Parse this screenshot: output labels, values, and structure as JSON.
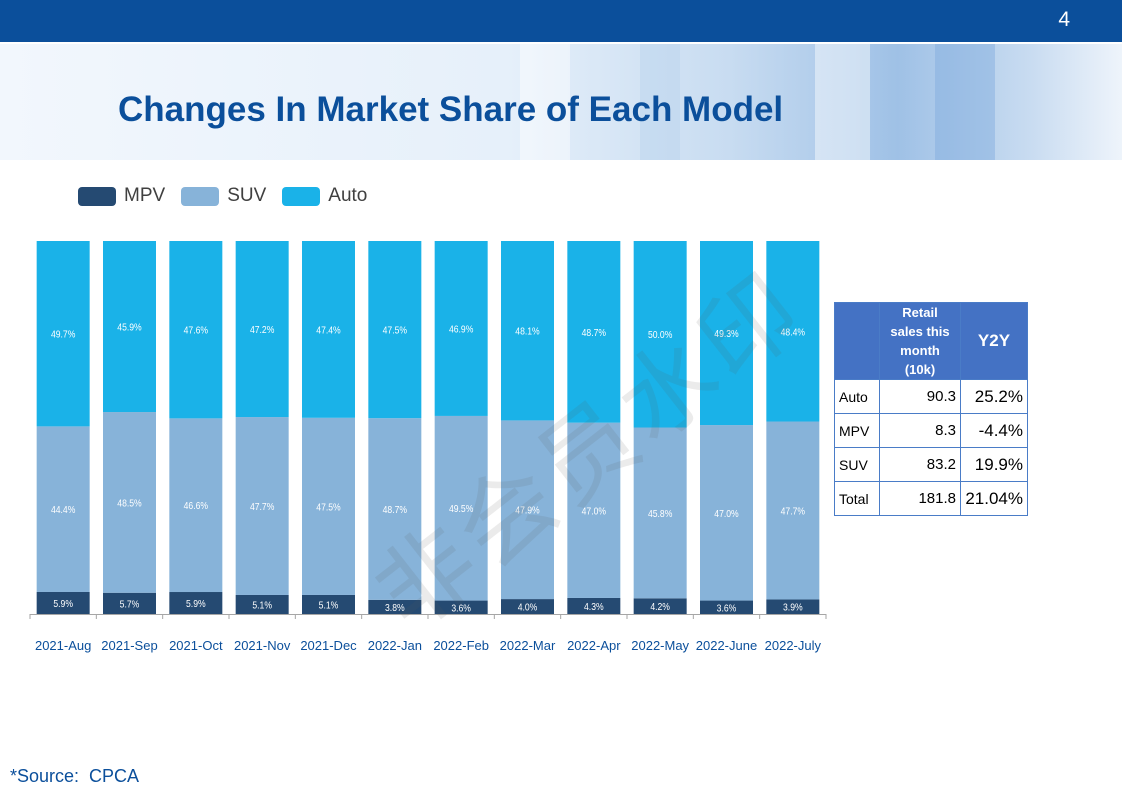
{
  "page": {
    "number": "4",
    "title": "Changes In Market Share of Each Model",
    "source": "*Source:  CPCA"
  },
  "legend": [
    {
      "label": "MPV",
      "color": "#254a72"
    },
    {
      "label": "SUV",
      "color": "#87b3d9"
    },
    {
      "label": "Auto",
      "color": "#1ab2e8"
    }
  ],
  "watermark": "非会员水印",
  "chart_data": {
    "type": "bar",
    "stacked": true,
    "percent": true,
    "categories": [
      "2021-Aug",
      "2021-Sep",
      "2021-Oct",
      "2021-Nov",
      "2021-Dec",
      "2022-Jan",
      "2022-Feb",
      "2022-Mar",
      "2022-Apr",
      "2022-May",
      "2022-June",
      "2022-July"
    ],
    "series": [
      {
        "name": "MPV",
        "color": "#254a72",
        "values": [
          5.9,
          5.7,
          5.9,
          5.1,
          5.1,
          3.8,
          3.6,
          4.0,
          4.3,
          4.2,
          3.6,
          3.9
        ],
        "labels": [
          "5.9%",
          "5.7%",
          "5.9%",
          "5.1%",
          "5.1%",
          "3.8%",
          "3.6%",
          "4.0%",
          "4.3%",
          "4.2%",
          "3.6%",
          "3.9%"
        ]
      },
      {
        "name": "SUV",
        "color": "#87b3d9",
        "values": [
          44.4,
          48.5,
          46.6,
          47.7,
          47.5,
          48.7,
          49.5,
          47.9,
          47.0,
          45.8,
          47.0,
          47.7
        ],
        "labels": [
          "44.4%",
          "48.5%",
          "46.6%",
          "47.7%",
          "47.5%",
          "48.7%",
          "49.5%",
          "47.9%",
          "47.0%",
          "45.8%",
          "47.0%",
          "47.7%"
        ]
      },
      {
        "name": "Auto",
        "color": "#1ab2e8",
        "values": [
          49.7,
          45.9,
          47.6,
          47.2,
          47.4,
          47.5,
          46.9,
          48.1,
          48.7,
          50.0,
          49.3,
          48.4
        ],
        "labels": [
          "49.7%",
          "45.9%",
          "47.6%",
          "47.2%",
          "47.4%",
          "47.5%",
          "46.9%",
          "48.1%",
          "48.7%",
          "50.0%",
          "49.3%",
          "48.4%"
        ]
      }
    ]
  },
  "table": {
    "header": {
      "blank": "",
      "retail_lines": [
        "Retail",
        "sales this",
        "month",
        "(10k)"
      ],
      "y2y": "Y2Y"
    },
    "rows": [
      {
        "label": "Auto",
        "sales": "90.3",
        "y2y": "25.2%"
      },
      {
        "label": "MPV",
        "sales": "8.3",
        "y2y": "-4.4%"
      },
      {
        "label": "SUV",
        "sales": "83.2",
        "y2y": "19.9%"
      },
      {
        "label": "Total",
        "sales": "181.8",
        "y2y": "21.04%"
      }
    ]
  }
}
